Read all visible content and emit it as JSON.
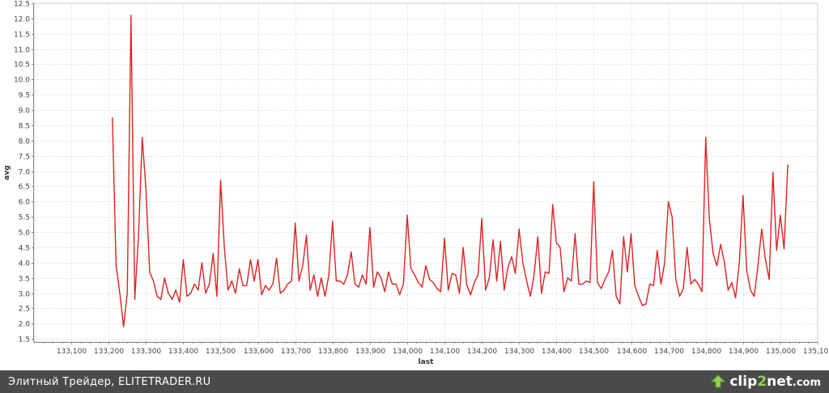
{
  "chart_data": {
    "type": "line",
    "xlabel": "last",
    "ylabel": "avg",
    "xlim": [
      133000,
      135100
    ],
    "ylim": [
      1.4,
      12.5
    ],
    "xticks": [
      "133,100",
      "133,200",
      "133,300",
      "133,400",
      "133,500",
      "133,600",
      "133,700",
      "133,800",
      "133,900",
      "134,000",
      "134,100",
      "134,200",
      "134,300",
      "134,400",
      "134,500",
      "134,600",
      "134,700",
      "134,800",
      "134,900",
      "135,000",
      "135,100"
    ],
    "yticks": [
      "1.5",
      "2.0",
      "2.5",
      "3.0",
      "3.5",
      "4.0",
      "4.5",
      "5.0",
      "5.5",
      "6.0",
      "6.5",
      "7.0",
      "7.5",
      "8.0",
      "8.5",
      "9.0",
      "9.5",
      "10.0",
      "10.5",
      "11.0",
      "11.5",
      "12.0",
      "12.5"
    ],
    "grid": true,
    "line_color": "#dd2222",
    "series": [
      {
        "x": [
          133210,
          133220,
          133230,
          133240,
          133250,
          133260,
          133270,
          133280,
          133290,
          133300,
          133310,
          133320,
          133330,
          133340,
          133350,
          133360,
          133370,
          133380,
          133390,
          133400,
          133410,
          133420,
          133430,
          133440,
          133450,
          133460,
          133470,
          133480,
          133490,
          133500,
          133510,
          133520,
          133530,
          133540,
          133550,
          133560,
          133570,
          133580,
          133590,
          133600,
          133610,
          133620,
          133630,
          133640,
          133650,
          133660,
          133670,
          133680,
          133690,
          133700,
          133710,
          133720,
          133730,
          133740,
          133750,
          133760,
          133770,
          133780,
          133790,
          133800,
          133810,
          133820,
          133830,
          133840,
          133850,
          133860,
          133870,
          133880,
          133890,
          133900,
          133910,
          133920,
          133930,
          133940,
          133950,
          133960,
          133970,
          133980,
          133990,
          134000,
          134010,
          134020,
          134030,
          134040,
          134050,
          134060,
          134070,
          134080,
          134090,
          134100,
          134110,
          134120,
          134130,
          134140,
          134150,
          134160,
          134170,
          134180,
          134190,
          134200,
          134210,
          134220,
          134230,
          134240,
          134250,
          134260,
          134270,
          134280,
          134290,
          134300,
          134310,
          134320,
          134330,
          134340,
          134350,
          134360,
          134370,
          134380,
          134390,
          134400,
          134410,
          134420,
          134430,
          134440,
          134450,
          134460,
          134470,
          134480,
          134490,
          134500,
          134510,
          134520,
          134530,
          134540,
          134550,
          134560,
          134570,
          134580,
          134590,
          134600,
          134610,
          134620,
          134630,
          134640,
          134650,
          134660,
          134670,
          134680,
          134690,
          134700,
          134710,
          134720,
          134730,
          134740,
          134750,
          134760,
          134770,
          134780,
          134790,
          134800,
          134810,
          134820,
          134830,
          134840,
          134850,
          134860,
          134870,
          134880,
          134890,
          134900,
          134910,
          134920,
          134930,
          134940,
          134950,
          134960,
          134970,
          134980,
          134990,
          135000,
          135010,
          135020
        ],
        "y": [
          8.75,
          3.9,
          3.0,
          1.9,
          3.0,
          12.1,
          2.8,
          4.9,
          8.1,
          6.4,
          3.7,
          3.4,
          2.9,
          2.8,
          3.5,
          3.0,
          2.8,
          3.1,
          2.7,
          4.1,
          2.9,
          3.0,
          3.3,
          3.1,
          4.0,
          3.0,
          3.3,
          4.3,
          2.9,
          6.7,
          4.5,
          3.1,
          3.4,
          3.0,
          3.8,
          3.25,
          3.25,
          4.1,
          3.4,
          4.1,
          2.95,
          3.25,
          3.1,
          3.3,
          4.15,
          3.0,
          3.1,
          3.3,
          3.4,
          5.3,
          3.4,
          3.9,
          4.9,
          3.1,
          3.6,
          2.9,
          3.5,
          2.9,
          3.6,
          5.35,
          3.4,
          3.4,
          3.3,
          3.6,
          4.35,
          3.3,
          3.2,
          3.6,
          3.3,
          5.15,
          3.2,
          3.7,
          3.5,
          3.05,
          3.7,
          3.3,
          3.3,
          2.95,
          3.3,
          5.55,
          3.8,
          3.6,
          3.35,
          3.2,
          3.9,
          3.45,
          3.35,
          3.15,
          3.05,
          4.8,
          3.1,
          3.65,
          3.6,
          3.0,
          4.5,
          3.25,
          2.95,
          3.35,
          3.6,
          5.45,
          3.1,
          3.5,
          4.75,
          3.4,
          4.7,
          3.1,
          3.85,
          4.2,
          3.65,
          5.1,
          4.0,
          3.4,
          2.9,
          3.6,
          4.85,
          3.0,
          3.7,
          3.65,
          5.9,
          4.65,
          4.5,
          3.05,
          3.5,
          3.4,
          4.95,
          3.3,
          3.3,
          3.4,
          3.35,
          6.65,
          3.35,
          3.15,
          3.45,
          3.7,
          4.4,
          2.9,
          2.65,
          4.85,
          3.7,
          4.95,
          3.25,
          2.9,
          2.6,
          2.65,
          3.3,
          3.25,
          4.4,
          3.3,
          4.0,
          6.0,
          5.5,
          3.45,
          2.9,
          3.15,
          4.5,
          3.3,
          3.45,
          3.3,
          3.05,
          8.1,
          5.4,
          4.3,
          3.9,
          4.6,
          4.0,
          3.1,
          3.35,
          2.85,
          4.0,
          6.2,
          3.75,
          3.1,
          2.9,
          3.9,
          5.1,
          4.1,
          3.45,
          6.95,
          4.4,
          5.55,
          4.45,
          7.2
        ]
      }
    ]
  },
  "footer": {
    "caption": "Элитный Трейдер, ELITETRADER.RU",
    "watermark_main": "clip",
    "watermark_accent": "2",
    "watermark_tail": "net",
    "watermark_domain": ".com"
  }
}
